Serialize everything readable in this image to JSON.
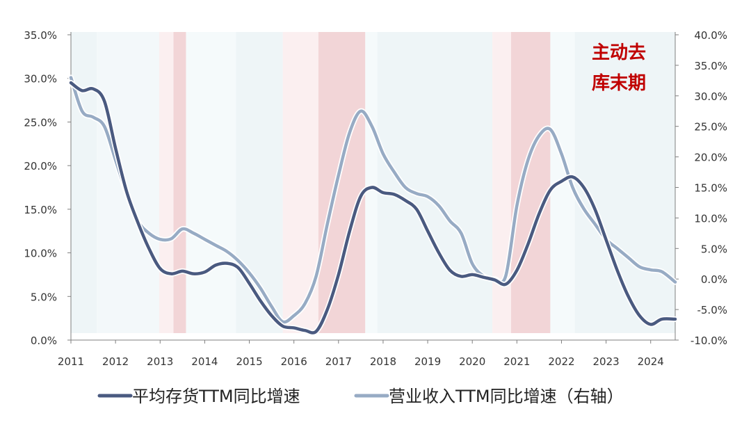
{
  "chart_data": {
    "type": "line",
    "title": "",
    "x_ticks": [
      "2011",
      "2012",
      "2013",
      "2014",
      "2015",
      "2016",
      "2017",
      "2018",
      "2019",
      "2020",
      "2021",
      "2022",
      "2023",
      "2024"
    ],
    "xlim": [
      2011.0,
      2024.55
    ],
    "left_axis": {
      "min": 0,
      "max": 35,
      "ticks": [
        "0.0%",
        "5.0%",
        "10.0%",
        "15.0%",
        "20.0%",
        "25.0%",
        "30.0%",
        "35.0%"
      ]
    },
    "right_axis": {
      "min": -10,
      "max": 40,
      "ticks": [
        "-10.0%",
        "-5.0%",
        "0.0%",
        "5.0%",
        "10.0%",
        "15.0%",
        "20.0%",
        "25.0%",
        "30.0%",
        "35.0%",
        "40.0%"
      ]
    },
    "annotation": [
      "主动去",
      "库末期"
    ],
    "series": [
      {
        "name": "平均存货TTM同比增速",
        "axis": "left",
        "color": "#4a5a80",
        "points": [
          [
            2011.0,
            29.5
          ],
          [
            2011.25,
            28.6
          ],
          [
            2011.5,
            28.8
          ],
          [
            2011.75,
            27.4
          ],
          [
            2012.0,
            22.0
          ],
          [
            2012.25,
            17.0
          ],
          [
            2012.5,
            13.5
          ],
          [
            2012.75,
            10.5
          ],
          [
            2013.0,
            8.2
          ],
          [
            2013.25,
            7.6
          ],
          [
            2013.5,
            7.9
          ],
          [
            2013.75,
            7.6
          ],
          [
            2014.0,
            7.8
          ],
          [
            2014.25,
            8.6
          ],
          [
            2014.5,
            8.8
          ],
          [
            2014.75,
            8.3
          ],
          [
            2015.0,
            6.5
          ],
          [
            2015.25,
            4.5
          ],
          [
            2015.5,
            2.8
          ],
          [
            2015.75,
            1.6
          ],
          [
            2016.0,
            1.4
          ],
          [
            2016.25,
            1.1
          ],
          [
            2016.5,
            1.0
          ],
          [
            2016.75,
            3.5
          ],
          [
            2017.0,
            7.5
          ],
          [
            2017.25,
            12.5
          ],
          [
            2017.5,
            16.5
          ],
          [
            2017.75,
            17.5
          ],
          [
            2018.0,
            16.9
          ],
          [
            2018.25,
            16.7
          ],
          [
            2018.5,
            16.0
          ],
          [
            2018.75,
            15.0
          ],
          [
            2019.0,
            12.5
          ],
          [
            2019.25,
            10.0
          ],
          [
            2019.5,
            8.0
          ],
          [
            2019.75,
            7.3
          ],
          [
            2020.0,
            7.5
          ],
          [
            2020.25,
            7.2
          ],
          [
            2020.5,
            6.9
          ],
          [
            2020.75,
            6.4
          ],
          [
            2021.0,
            8.0
          ],
          [
            2021.25,
            11.0
          ],
          [
            2021.5,
            14.5
          ],
          [
            2021.75,
            17.2
          ],
          [
            2022.0,
            18.2
          ],
          [
            2022.25,
            18.7
          ],
          [
            2022.5,
            17.5
          ],
          [
            2022.75,
            15.0
          ],
          [
            2023.0,
            11.5
          ],
          [
            2023.25,
            8.0
          ],
          [
            2023.5,
            5.0
          ],
          [
            2023.75,
            2.8
          ],
          [
            2024.0,
            1.8
          ],
          [
            2024.25,
            2.4
          ],
          [
            2024.55,
            2.4
          ]
        ]
      },
      {
        "name": "营业收入TTM同比增速（右轴）",
        "axis": "right",
        "color": "#97abc4",
        "points": [
          [
            2011.0,
            33.0
          ],
          [
            2011.25,
            27.5
          ],
          [
            2011.5,
            26.5
          ],
          [
            2011.75,
            25.0
          ],
          [
            2012.0,
            19.5
          ],
          [
            2012.25,
            14.0
          ],
          [
            2012.5,
            9.5
          ],
          [
            2012.75,
            7.5
          ],
          [
            2013.0,
            6.5
          ],
          [
            2013.25,
            6.6
          ],
          [
            2013.5,
            8.2
          ],
          [
            2013.75,
            7.5
          ],
          [
            2014.0,
            6.5
          ],
          [
            2014.25,
            5.5
          ],
          [
            2014.5,
            4.5
          ],
          [
            2014.75,
            3.0
          ],
          [
            2015.0,
            1.0
          ],
          [
            2015.25,
            -1.5
          ],
          [
            2015.5,
            -4.5
          ],
          [
            2015.75,
            -7.0
          ],
          [
            2016.0,
            -6.0
          ],
          [
            2016.25,
            -4.0
          ],
          [
            2016.5,
            0.5
          ],
          [
            2016.75,
            9.0
          ],
          [
            2017.0,
            17.0
          ],
          [
            2017.25,
            24.0
          ],
          [
            2017.5,
            27.5
          ],
          [
            2017.75,
            25.0
          ],
          [
            2018.0,
            20.5
          ],
          [
            2018.25,
            17.5
          ],
          [
            2018.5,
            15.0
          ],
          [
            2018.75,
            14.0
          ],
          [
            2019.0,
            13.5
          ],
          [
            2019.25,
            12.0
          ],
          [
            2019.5,
            9.5
          ],
          [
            2019.75,
            7.5
          ],
          [
            2020.0,
            2.5
          ],
          [
            2020.25,
            0.5
          ],
          [
            2020.5,
            0.0
          ],
          [
            2020.75,
            0.5
          ],
          [
            2021.0,
            12.0
          ],
          [
            2021.25,
            19.5
          ],
          [
            2021.5,
            23.5
          ],
          [
            2021.75,
            24.5
          ],
          [
            2022.0,
            20.5
          ],
          [
            2022.25,
            15.0
          ],
          [
            2022.5,
            11.5
          ],
          [
            2022.75,
            9.0
          ],
          [
            2023.0,
            6.5
          ],
          [
            2023.25,
            5.0
          ],
          [
            2023.5,
            3.5
          ],
          [
            2023.75,
            2.0
          ],
          [
            2024.0,
            1.5
          ],
          [
            2024.25,
            1.2
          ],
          [
            2024.55,
            -0.5
          ]
        ]
      }
    ],
    "shaded_periods": [
      {
        "start": 2011.0,
        "end": 2011.58,
        "color": "#eef5f7"
      },
      {
        "start": 2011.58,
        "end": 2012.98,
        "color": "#f3f8fa"
      },
      {
        "start": 2012.98,
        "end": 2013.3,
        "color": "#fbeff0"
      },
      {
        "start": 2013.3,
        "end": 2013.58,
        "color": "#f2d5d7"
      },
      {
        "start": 2013.58,
        "end": 2014.7,
        "color": "#f5fafb"
      },
      {
        "start": 2014.7,
        "end": 2015.75,
        "color": "#eef5f7"
      },
      {
        "start": 2015.75,
        "end": 2016.55,
        "color": "#fbeff0"
      },
      {
        "start": 2016.55,
        "end": 2017.6,
        "color": "#f2d5d7"
      },
      {
        "start": 2017.6,
        "end": 2017.87,
        "color": "#f5fafb"
      },
      {
        "start": 2017.87,
        "end": 2020.45,
        "color": "#eef5f7"
      },
      {
        "start": 2020.45,
        "end": 2020.87,
        "color": "#fbeff0"
      },
      {
        "start": 2020.87,
        "end": 2021.75,
        "color": "#f2d5d7"
      },
      {
        "start": 2021.75,
        "end": 2022.3,
        "color": "#f5fafb"
      },
      {
        "start": 2022.3,
        "end": 2024.55,
        "color": "#eef5f7"
      }
    ]
  }
}
